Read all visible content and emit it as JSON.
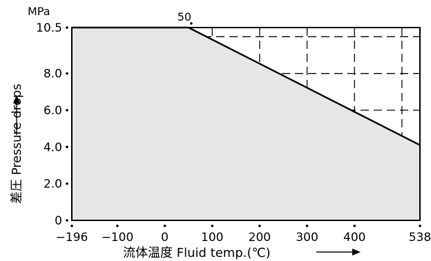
{
  "chart_data": {
    "type": "area",
    "title": "",
    "xlabel": "流体温度 Fluid temp.(℃)",
    "ylabel": "差圧 Pressure drops",
    "yunit": "MPa",
    "x_ticks": [
      -196,
      -100,
      0,
      100,
      200,
      300,
      400,
      538
    ],
    "x_tick_labels": [
      "−196",
      "−100",
      "0",
      "100",
      "200",
      "300",
      "400",
      "538"
    ],
    "y_ticks": [
      0,
      2.0,
      4.0,
      6.0,
      8.0,
      10.5
    ],
    "y_tick_labels": [
      "0",
      "2.0",
      "4.0",
      "6.0",
      "8.0",
      "10.5"
    ],
    "xlim": [
      -196,
      538
    ],
    "ylim": [
      0,
      10.5
    ],
    "grid": true,
    "grid_x": [
      -100,
      0,
      100,
      200,
      300,
      400,
      500
    ],
    "grid_y": [
      2,
      4,
      6,
      8,
      10
    ],
    "series": [
      {
        "x": [
          -196,
          50,
          538
        ],
        "values": [
          10.5,
          10.5,
          4.1
        ]
      }
    ],
    "annotations": [
      {
        "text": "50",
        "x": 50,
        "y": 10.5
      }
    ],
    "colors": {
      "fill": "#e6e6e6",
      "line": "#000000",
      "grid": "#000000"
    }
  }
}
